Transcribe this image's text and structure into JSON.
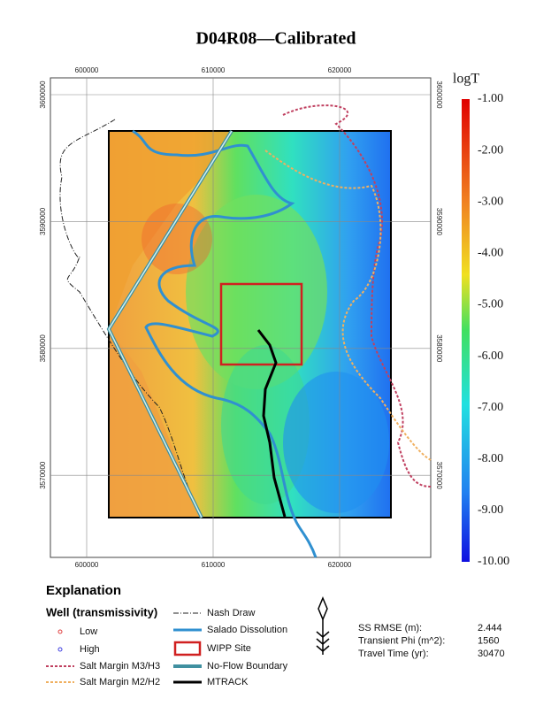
{
  "title": "D04R08—Calibrated",
  "map": {
    "x_ticks": [
      "600000",
      "610000",
      "620000"
    ],
    "y_ticks": [
      "3600000",
      "3590000",
      "3580000",
      "3570000"
    ]
  },
  "colorbar": {
    "title": "logT",
    "ticks": [
      "-1.00",
      "-2.00",
      "-3.00",
      "-4.00",
      "-5.00",
      "-6.00",
      "-7.00",
      "-8.00",
      "-9.00",
      "-10.00"
    ]
  },
  "legend": {
    "heading": "Explanation",
    "subheading": "Well (transmissivity)",
    "items": [
      "Low",
      "High",
      "Salt Margin M3/H3",
      "Salt Margin M2/H2",
      "Nash Draw",
      "Salado Dissolution",
      "WIPP Site",
      "No-Flow Boundary",
      "MTRACK"
    ]
  },
  "stats": [
    [
      "SS RMSE (m):",
      "2.444"
    ],
    [
      "Transient Phi (m^2):",
      "1560"
    ],
    [
      "Travel Time (yr):",
      "30470"
    ]
  ]
}
